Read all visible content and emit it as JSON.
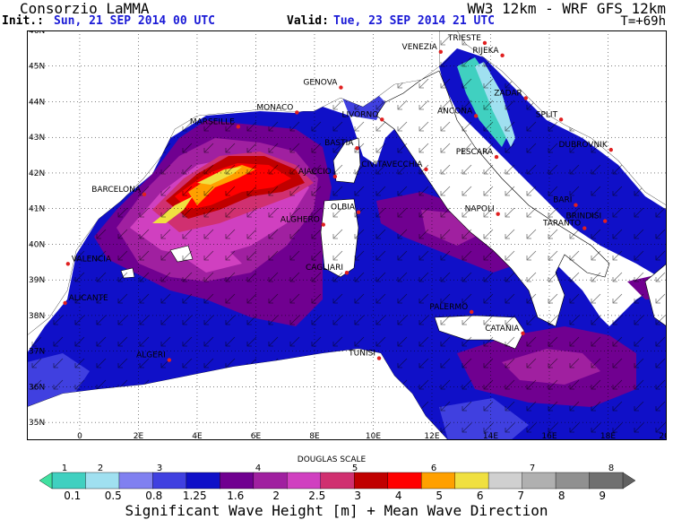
{
  "header": {
    "org": "Consorzio LaMMA",
    "model": "WW3 12km - WRF GFS 12km",
    "init_label": "Init.:",
    "init_value": "Sun, 21 SEP 2014  00 UTC",
    "valid_label": "Valid:",
    "valid_value": "Tue, 23 SEP 2014  21 UTC",
    "lead": "T=+69h"
  },
  "map": {
    "lat_labels": [
      "46N",
      "45N",
      "44N",
      "43N",
      "42N",
      "41N",
      "40N",
      "39N",
      "38N",
      "37N",
      "36N",
      "35N"
    ],
    "lon_labels": [
      "0",
      "2E",
      "4E",
      "6E",
      "8E",
      "10E",
      "12E",
      "14E",
      "16E",
      "18E",
      "20E"
    ],
    "cities": [
      {
        "name": "TRIESTE",
        "lon": 13.8,
        "lat": 45.65
      },
      {
        "name": "VENEZIA",
        "lon": 12.3,
        "lat": 45.4
      },
      {
        "name": "RIJEKA",
        "lon": 14.4,
        "lat": 45.3
      },
      {
        "name": "GENOVA",
        "lon": 8.9,
        "lat": 44.4
      },
      {
        "name": "MONACO",
        "lon": 7.4,
        "lat": 43.7
      },
      {
        "name": "MARSEILLE",
        "lon": 5.4,
        "lat": 43.3
      },
      {
        "name": "LIVORNO",
        "lon": 10.3,
        "lat": 43.5
      },
      {
        "name": "ANCONA",
        "lon": 13.5,
        "lat": 43.6
      },
      {
        "name": "ZADAR",
        "lon": 15.2,
        "lat": 44.1
      },
      {
        "name": "SPLIT",
        "lon": 16.4,
        "lat": 43.5
      },
      {
        "name": "DUBROVNIK",
        "lon": 18.1,
        "lat": 42.65
      },
      {
        "name": "BASTIA",
        "lon": 9.45,
        "lat": 42.7
      },
      {
        "name": "AJACCIO",
        "lon": 8.7,
        "lat": 41.9
      },
      {
        "name": "PESCARA",
        "lon": 14.2,
        "lat": 42.45
      },
      {
        "name": "CIVITAVECCHIA",
        "lon": 11.8,
        "lat": 42.1
      },
      {
        "name": "BARCELONA",
        "lon": 2.2,
        "lat": 41.4
      },
      {
        "name": "OLBIA",
        "lon": 9.5,
        "lat": 40.9
      },
      {
        "name": "ALGHERO",
        "lon": 8.3,
        "lat": 40.55
      },
      {
        "name": "NAPOLI",
        "lon": 14.25,
        "lat": 40.85
      },
      {
        "name": "BARI",
        "lon": 16.9,
        "lat": 41.1
      },
      {
        "name": "BRINDISI",
        "lon": 17.9,
        "lat": 40.65
      },
      {
        "name": "TARANTO",
        "lon": 17.2,
        "lat": 40.45
      },
      {
        "name": "VALENCIA",
        "lon": -0.4,
        "lat": 39.45
      },
      {
        "name": "CAGLIARI",
        "lon": 9.1,
        "lat": 39.2
      },
      {
        "name": "ALICANTE",
        "lon": -0.5,
        "lat": 38.35
      },
      {
        "name": "PALERMO",
        "lon": 13.35,
        "lat": 38.1
      },
      {
        "name": "CATANIA",
        "lon": 15.1,
        "lat": 37.5
      },
      {
        "name": "TUNISI",
        "lon": 10.2,
        "lat": 36.8
      },
      {
        "name": "ALGERI",
        "lon": 3.05,
        "lat": 36.75
      }
    ]
  },
  "legend": {
    "douglas_title": "DOUGLAS SCALE",
    "douglas": [
      "1",
      "2",
      "3",
      "4",
      "5",
      "6",
      "7",
      "8"
    ],
    "ticks": [
      "0.1",
      "0.5",
      "0.8",
      "1.25",
      "1.6",
      "2",
      "2.5",
      "3",
      "4",
      "5",
      "6",
      "7",
      "8",
      "9"
    ],
    "colors": [
      "#40d0c0",
      "#a0e0f0",
      "#8080f0",
      "#4040e0",
      "#1010c8",
      "#700090",
      "#a020a0",
      "#d040c0",
      "#d03070",
      "#c00000",
      "#ff0000",
      "#ffa000",
      "#f0e040",
      "#d0d0d0",
      "#b0b0b0",
      "#909090",
      "#707070"
    ],
    "title": "Significant Wave Height [m] + Mean Wave Direction"
  }
}
